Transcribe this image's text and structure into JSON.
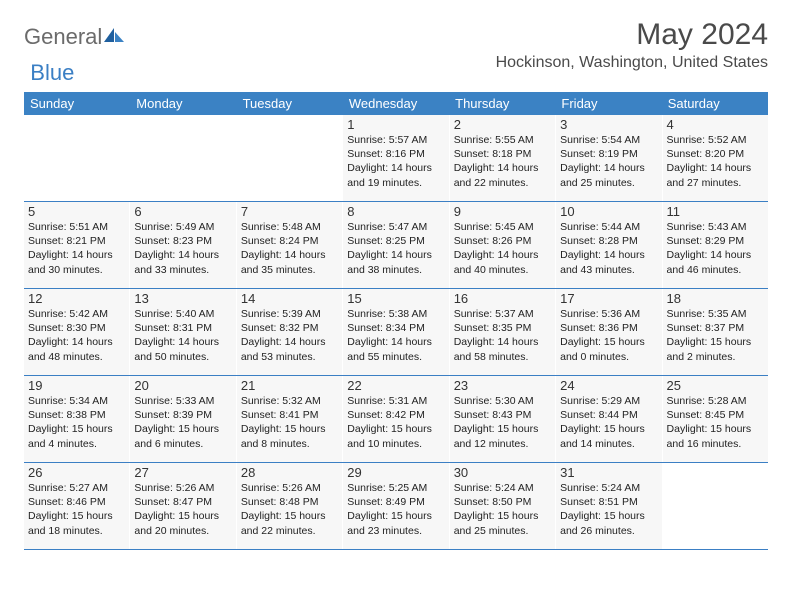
{
  "brand": {
    "name1": "General",
    "name2": "Blue"
  },
  "title": "May 2024",
  "location": "Hockinson, Washington, United States",
  "colors": {
    "header_bg": "#3b82c4",
    "header_text": "#ffffff",
    "cell_bg": "#f7f7f7",
    "row_border": "#3b7fc4",
    "text": "#222222",
    "brand_gray": "#6b6b6b",
    "brand_blue": "#3b7fc4"
  },
  "typography": {
    "title_fontsize": 30,
    "location_fontsize": 16,
    "weekday_fontsize": 13,
    "daynum_fontsize": 13,
    "body_fontsize": 10.5
  },
  "weekdays": [
    "Sunday",
    "Monday",
    "Tuesday",
    "Wednesday",
    "Thursday",
    "Friday",
    "Saturday"
  ],
  "weeks": [
    [
      null,
      null,
      null,
      {
        "n": "1",
        "sr": "Sunrise: 5:57 AM",
        "ss": "Sunset: 8:16 PM",
        "d1": "Daylight: 14 hours",
        "d2": "and 19 minutes."
      },
      {
        "n": "2",
        "sr": "Sunrise: 5:55 AM",
        "ss": "Sunset: 8:18 PM",
        "d1": "Daylight: 14 hours",
        "d2": "and 22 minutes."
      },
      {
        "n": "3",
        "sr": "Sunrise: 5:54 AM",
        "ss": "Sunset: 8:19 PM",
        "d1": "Daylight: 14 hours",
        "d2": "and 25 minutes."
      },
      {
        "n": "4",
        "sr": "Sunrise: 5:52 AM",
        "ss": "Sunset: 8:20 PM",
        "d1": "Daylight: 14 hours",
        "d2": "and 27 minutes."
      }
    ],
    [
      {
        "n": "5",
        "sr": "Sunrise: 5:51 AM",
        "ss": "Sunset: 8:21 PM",
        "d1": "Daylight: 14 hours",
        "d2": "and 30 minutes."
      },
      {
        "n": "6",
        "sr": "Sunrise: 5:49 AM",
        "ss": "Sunset: 8:23 PM",
        "d1": "Daylight: 14 hours",
        "d2": "and 33 minutes."
      },
      {
        "n": "7",
        "sr": "Sunrise: 5:48 AM",
        "ss": "Sunset: 8:24 PM",
        "d1": "Daylight: 14 hours",
        "d2": "and 35 minutes."
      },
      {
        "n": "8",
        "sr": "Sunrise: 5:47 AM",
        "ss": "Sunset: 8:25 PM",
        "d1": "Daylight: 14 hours",
        "d2": "and 38 minutes."
      },
      {
        "n": "9",
        "sr": "Sunrise: 5:45 AM",
        "ss": "Sunset: 8:26 PM",
        "d1": "Daylight: 14 hours",
        "d2": "and 40 minutes."
      },
      {
        "n": "10",
        "sr": "Sunrise: 5:44 AM",
        "ss": "Sunset: 8:28 PM",
        "d1": "Daylight: 14 hours",
        "d2": "and 43 minutes."
      },
      {
        "n": "11",
        "sr": "Sunrise: 5:43 AM",
        "ss": "Sunset: 8:29 PM",
        "d1": "Daylight: 14 hours",
        "d2": "and 46 minutes."
      }
    ],
    [
      {
        "n": "12",
        "sr": "Sunrise: 5:42 AM",
        "ss": "Sunset: 8:30 PM",
        "d1": "Daylight: 14 hours",
        "d2": "and 48 minutes."
      },
      {
        "n": "13",
        "sr": "Sunrise: 5:40 AM",
        "ss": "Sunset: 8:31 PM",
        "d1": "Daylight: 14 hours",
        "d2": "and 50 minutes."
      },
      {
        "n": "14",
        "sr": "Sunrise: 5:39 AM",
        "ss": "Sunset: 8:32 PM",
        "d1": "Daylight: 14 hours",
        "d2": "and 53 minutes."
      },
      {
        "n": "15",
        "sr": "Sunrise: 5:38 AM",
        "ss": "Sunset: 8:34 PM",
        "d1": "Daylight: 14 hours",
        "d2": "and 55 minutes."
      },
      {
        "n": "16",
        "sr": "Sunrise: 5:37 AM",
        "ss": "Sunset: 8:35 PM",
        "d1": "Daylight: 14 hours",
        "d2": "and 58 minutes."
      },
      {
        "n": "17",
        "sr": "Sunrise: 5:36 AM",
        "ss": "Sunset: 8:36 PM",
        "d1": "Daylight: 15 hours",
        "d2": "and 0 minutes."
      },
      {
        "n": "18",
        "sr": "Sunrise: 5:35 AM",
        "ss": "Sunset: 8:37 PM",
        "d1": "Daylight: 15 hours",
        "d2": "and 2 minutes."
      }
    ],
    [
      {
        "n": "19",
        "sr": "Sunrise: 5:34 AM",
        "ss": "Sunset: 8:38 PM",
        "d1": "Daylight: 15 hours",
        "d2": "and 4 minutes."
      },
      {
        "n": "20",
        "sr": "Sunrise: 5:33 AM",
        "ss": "Sunset: 8:39 PM",
        "d1": "Daylight: 15 hours",
        "d2": "and 6 minutes."
      },
      {
        "n": "21",
        "sr": "Sunrise: 5:32 AM",
        "ss": "Sunset: 8:41 PM",
        "d1": "Daylight: 15 hours",
        "d2": "and 8 minutes."
      },
      {
        "n": "22",
        "sr": "Sunrise: 5:31 AM",
        "ss": "Sunset: 8:42 PM",
        "d1": "Daylight: 15 hours",
        "d2": "and 10 minutes."
      },
      {
        "n": "23",
        "sr": "Sunrise: 5:30 AM",
        "ss": "Sunset: 8:43 PM",
        "d1": "Daylight: 15 hours",
        "d2": "and 12 minutes."
      },
      {
        "n": "24",
        "sr": "Sunrise: 5:29 AM",
        "ss": "Sunset: 8:44 PM",
        "d1": "Daylight: 15 hours",
        "d2": "and 14 minutes."
      },
      {
        "n": "25",
        "sr": "Sunrise: 5:28 AM",
        "ss": "Sunset: 8:45 PM",
        "d1": "Daylight: 15 hours",
        "d2": "and 16 minutes."
      }
    ],
    [
      {
        "n": "26",
        "sr": "Sunrise: 5:27 AM",
        "ss": "Sunset: 8:46 PM",
        "d1": "Daylight: 15 hours",
        "d2": "and 18 minutes."
      },
      {
        "n": "27",
        "sr": "Sunrise: 5:26 AM",
        "ss": "Sunset: 8:47 PM",
        "d1": "Daylight: 15 hours",
        "d2": "and 20 minutes."
      },
      {
        "n": "28",
        "sr": "Sunrise: 5:26 AM",
        "ss": "Sunset: 8:48 PM",
        "d1": "Daylight: 15 hours",
        "d2": "and 22 minutes."
      },
      {
        "n": "29",
        "sr": "Sunrise: 5:25 AM",
        "ss": "Sunset: 8:49 PM",
        "d1": "Daylight: 15 hours",
        "d2": "and 23 minutes."
      },
      {
        "n": "30",
        "sr": "Sunrise: 5:24 AM",
        "ss": "Sunset: 8:50 PM",
        "d1": "Daylight: 15 hours",
        "d2": "and 25 minutes."
      },
      {
        "n": "31",
        "sr": "Sunrise: 5:24 AM",
        "ss": "Sunset: 8:51 PM",
        "d1": "Daylight: 15 hours",
        "d2": "and 26 minutes."
      },
      null
    ]
  ]
}
